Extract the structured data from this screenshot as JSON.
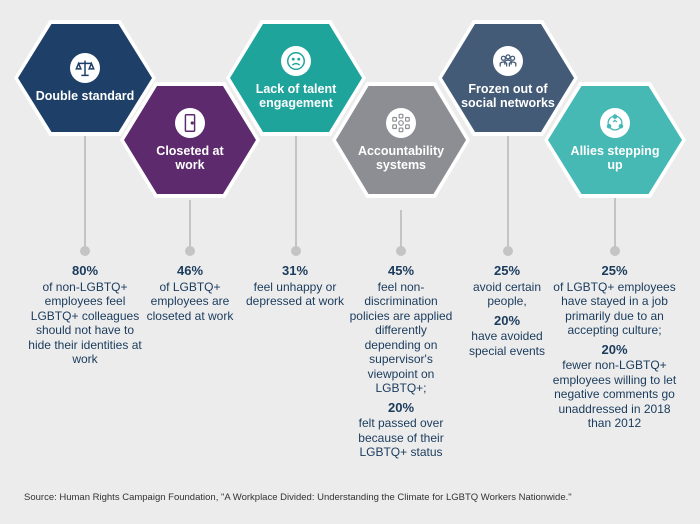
{
  "colors": {
    "navy": "#1e3f67",
    "purple": "#5d2a6e",
    "teal": "#1fa49c",
    "gray": "#8c8e93",
    "slate": "#445b77",
    "light_teal": "#47b9b4",
    "text": "#1a3b5c"
  },
  "items": [
    {
      "title": "Double standard",
      "icon": "scales-icon",
      "stat1_value": "80%",
      "stat1_text": "of non-LGBTQ+ employees feel LGBTQ+ colleagues should not have to hide their identities at work",
      "stat2_value": "",
      "stat2_text": ""
    },
    {
      "title": "Closeted at work",
      "icon": "closet-door-icon",
      "stat1_value": "46%",
      "stat1_text": "of LGBTQ+ employees are closeted at work",
      "stat2_value": "",
      "stat2_text": ""
    },
    {
      "title": "Lack of talent engagement",
      "icon": "frown-face-icon",
      "stat1_value": "31%",
      "stat1_text": "feel unhappy or depressed at work",
      "stat2_value": "",
      "stat2_text": ""
    },
    {
      "title": "Accountability systems",
      "icon": "policy-circle-icon",
      "stat1_value": "45%",
      "stat1_text": "feel non-discrimination policies are applied differently depending on supervisor's viewpoint on LGBTQ+;",
      "stat2_value": "20%",
      "stat2_text": "felt passed over because of their LGBTQ+ status"
    },
    {
      "title": "Frozen out of social networks",
      "icon": "people-group-icon",
      "stat1_value": "25%",
      "stat1_text": "avoid certain people,",
      "stat2_value": "20%",
      "stat2_text": "have avoided special events"
    },
    {
      "title": "Allies stepping up",
      "icon": "allies-network-icon",
      "stat1_value": "25%",
      "stat1_text": "of LGBTQ+ employees have stayed in a job primarily due to an accepting culture;",
      "stat2_value": "20%",
      "stat2_text": "fewer non-LGBTQ+ employees willing to let negative comments go unaddressed in 2018 than 2012"
    }
  ],
  "source": "Source: Human Rights Campaign Foundation, \"A Workplace Divided: Understanding the Climate for LGBTQ Workers Nationwide.\""
}
